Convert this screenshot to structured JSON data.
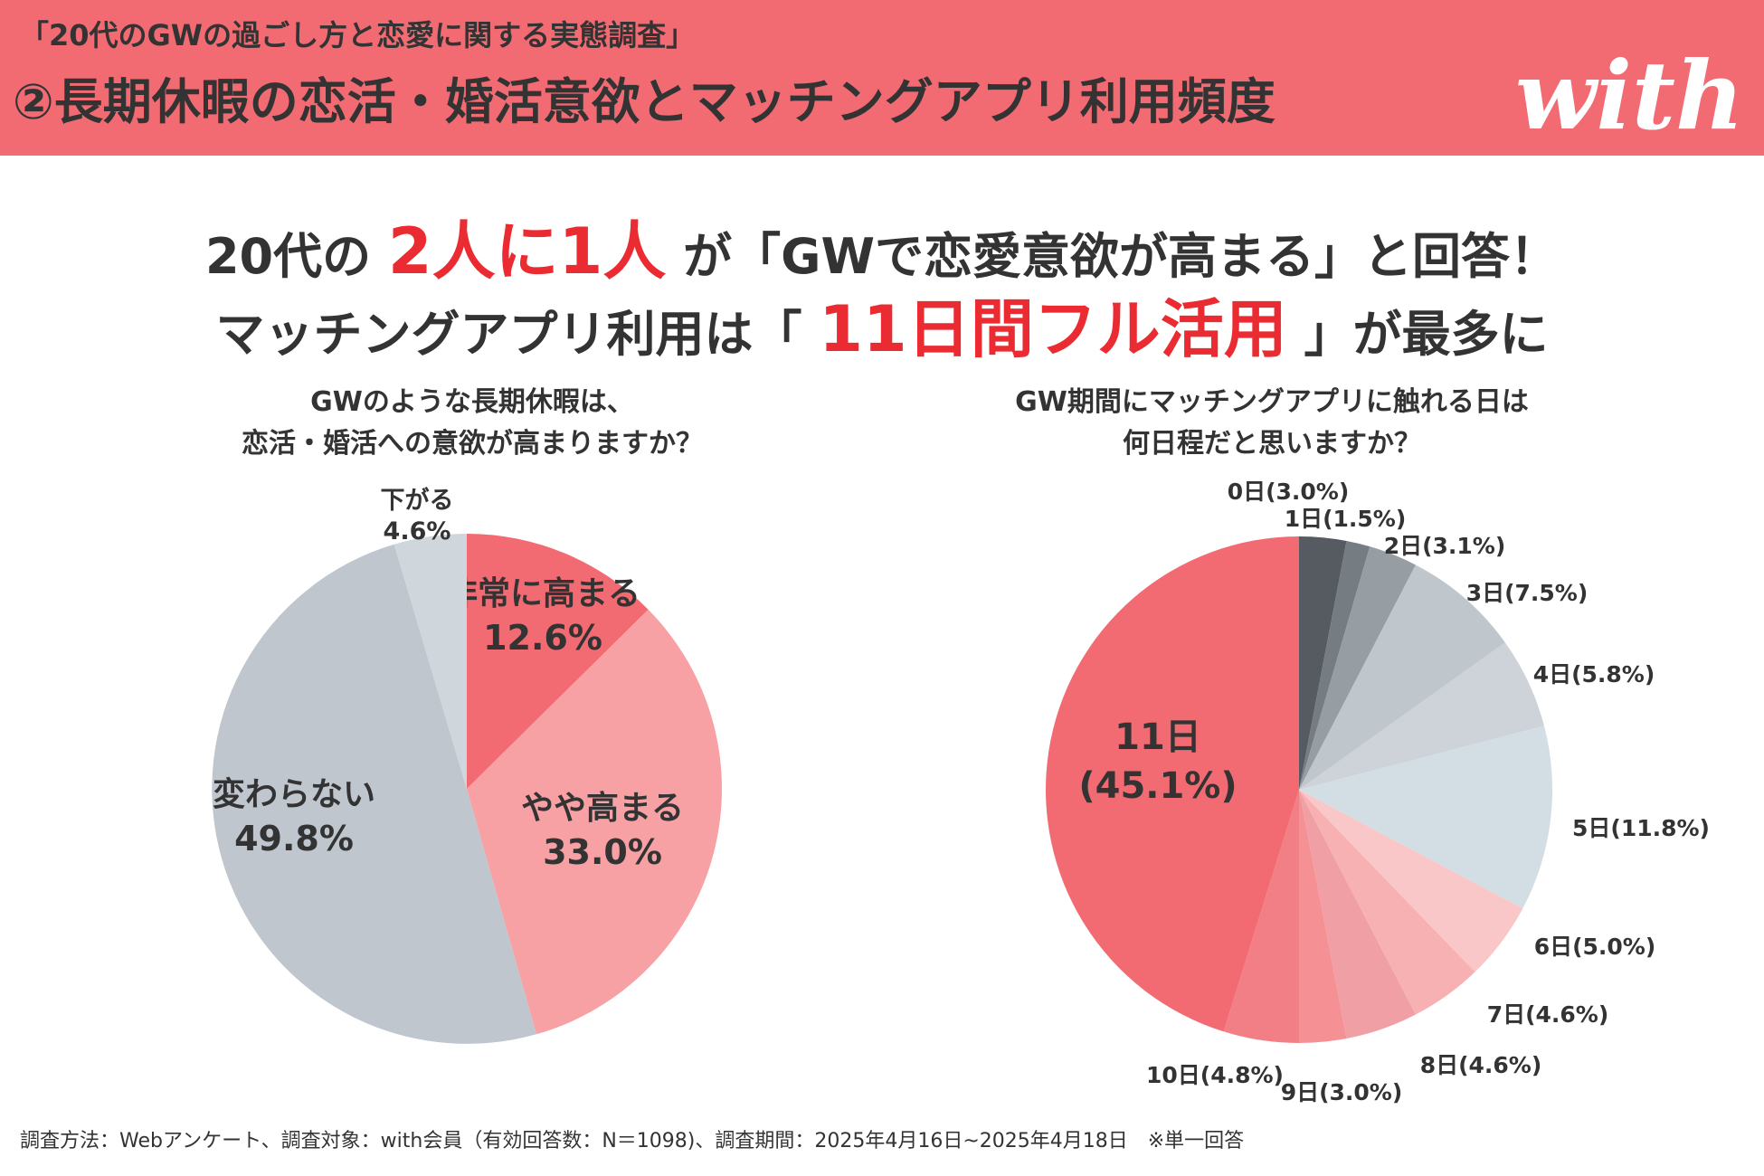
{
  "header": {
    "subtitle": "「20代のGWの過ごし方と恋愛に関する実態調査」",
    "title": "②長期休暇の恋活・婚活意欲とマッチングアプリ利用頻度",
    "logo_text": "with",
    "background_color": "#f26b73"
  },
  "headline": {
    "line1_prefix": "20代の",
    "line1_highlight": "2人に1人",
    "line1_suffix": "が「GWで恋愛意欲が高まる」と回答！",
    "line2_prefix": "マッチングアプリ利用は「",
    "line2_highlight": "11日間フル活用",
    "line2_suffix": "」が最多に",
    "highlight_color": "#ea2b31"
  },
  "chart_data": [
    {
      "type": "pie",
      "title_lines": [
        "GWのような長期休暇は、",
        "恋活・婚活への意欲が高まりますか？"
      ],
      "start": "12 o'clock, clockwise",
      "slices": [
        {
          "label": "非常に高まる",
          "value": 12.6,
          "value_text": "12.6%",
          "color": "#f26b73"
        },
        {
          "label": "やや高まる",
          "value": 33.0,
          "value_text": "33.0%",
          "color": "#f7a1a5"
        },
        {
          "label": "変わらない",
          "value": 49.8,
          "value_text": "49.8%",
          "color": "#bfc6ce"
        },
        {
          "label": "下がる",
          "value": 4.6,
          "value_text": "4.6%",
          "color": "#cfd7dc"
        }
      ]
    },
    {
      "type": "pie",
      "title_lines": [
        "GW期間にマッチングアプリに触れる日は",
        "何日程だと思いますか？"
      ],
      "start": "12 o'clock, clockwise",
      "slices": [
        {
          "label": "0日",
          "value": 3.0,
          "value_text": "3.0%",
          "color": "#555b60"
        },
        {
          "label": "1日",
          "value": 1.5,
          "value_text": "1.5%",
          "color": "#757c82"
        },
        {
          "label": "2日",
          "value": 3.1,
          "value_text": "3.1%",
          "color": "#969da3"
        },
        {
          "label": "3日",
          "value": 7.5,
          "value_text": "7.5%",
          "color": "#bfc6cc"
        },
        {
          "label": "4日",
          "value": 5.8,
          "value_text": "5.8%",
          "color": "#cdd3d8"
        },
        {
          "label": "5日",
          "value": 11.8,
          "value_text": "11.8%",
          "color": "#d3dde4"
        },
        {
          "label": "6日",
          "value": 5.0,
          "value_text": "5.0%",
          "color": "#f9c7c8"
        },
        {
          "label": "7日",
          "value": 4.6,
          "value_text": "4.6%",
          "color": "#f8b1b3"
        },
        {
          "label": "8日",
          "value": 4.6,
          "value_text": "4.6%",
          "color": "#f0a0a4"
        },
        {
          "label": "9日",
          "value": 3.0,
          "value_text": "3.0%",
          "color": "#f59094"
        },
        {
          "label": "10日",
          "value": 4.8,
          "value_text": "4.8%",
          "color": "#f27f85"
        },
        {
          "label": "11日",
          "value": 45.1,
          "value_text": "45.1%",
          "color": "#f26b73"
        }
      ]
    }
  ],
  "footer": {
    "note": "調査方法：Webアンケート、調査対象：with会員（有効回答数：N＝1098)、調査期間：2025年4月16日~2025年4月18日　※単一回答"
  }
}
